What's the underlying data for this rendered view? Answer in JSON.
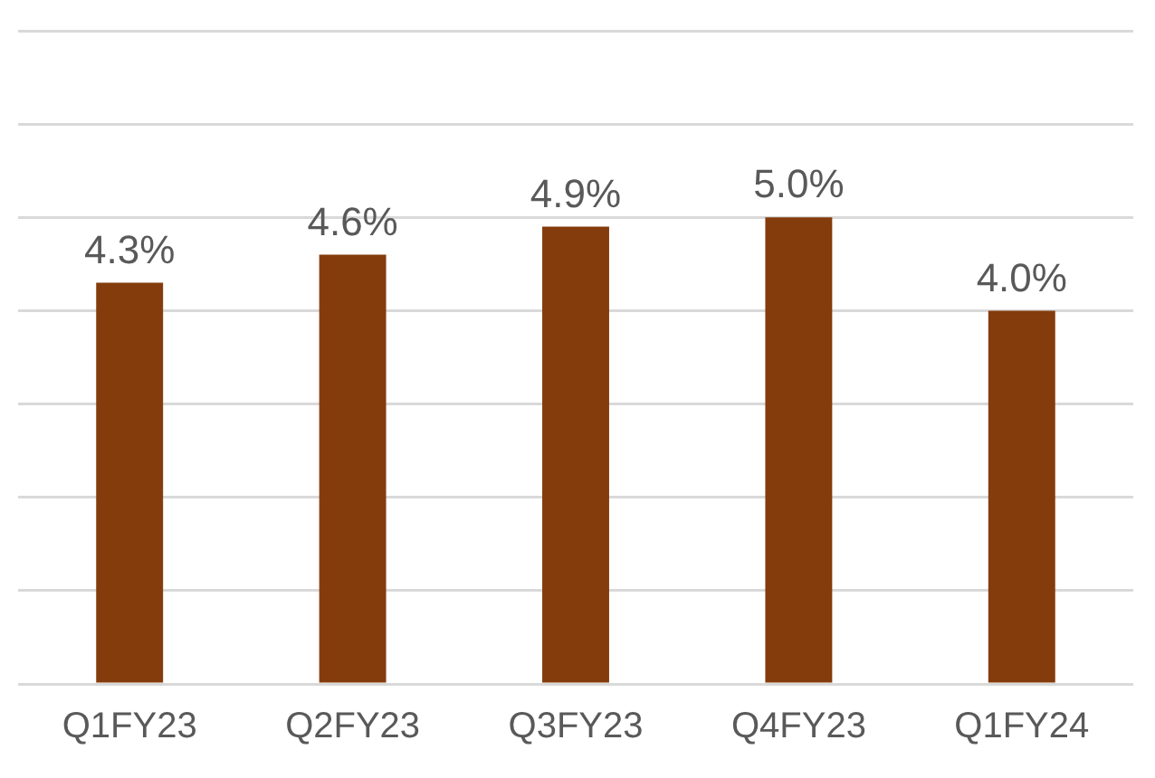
{
  "chart_data": {
    "type": "bar",
    "categories": [
      "Q1FY23",
      "Q2FY23",
      "Q3FY23",
      "Q4FY23",
      "Q1FY24"
    ],
    "values": [
      4.3,
      4.6,
      4.9,
      5.0,
      4.0
    ],
    "value_labels": [
      "4.3%",
      "4.6%",
      "4.9%",
      "5.0%",
      "4.0%"
    ],
    "color": "#843c0c",
    "ylim": [
      0,
      7
    ],
    "yticks": [
      {
        "value": 0,
        "label": null
      },
      {
        "value": 1,
        "label": null
      },
      {
        "value": 2,
        "label": null
      },
      {
        "value": 3,
        "label": null
      },
      {
        "value": 4,
        "label": null
      },
      {
        "value": 5,
        "label": null
      },
      {
        "value": 6,
        "label": null
      },
      {
        "value": 7,
        "label": null
      }
    ],
    "grid": "y",
    "tick_labels": "x"
  }
}
